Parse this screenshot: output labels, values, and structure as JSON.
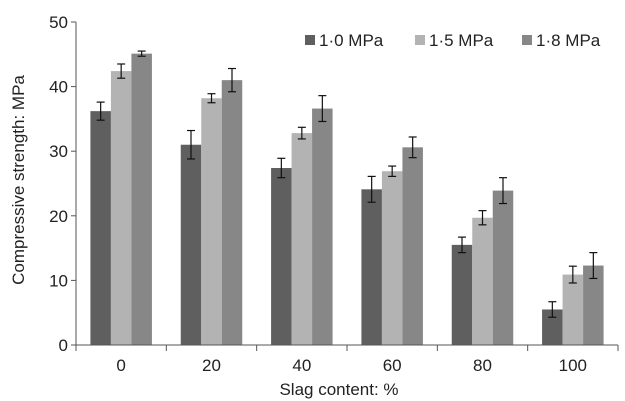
{
  "chart_data": {
    "type": "bar",
    "title": "",
    "xlabel": "Slag content: %",
    "ylabel": "Compressive strength: MPa",
    "categories": [
      "0",
      "20",
      "40",
      "60",
      "80",
      "100"
    ],
    "ylim": [
      0,
      50
    ],
    "yticks": [
      "0",
      "10",
      "20",
      "30",
      "40",
      "50"
    ],
    "grid": false,
    "legend_position": "top-right",
    "series": [
      {
        "name": "1·0 MPa",
        "color": "#5f5f5f",
        "values": [
          36.2,
          31.0,
          27.4,
          24.1,
          15.5,
          5.5
        ],
        "errors": [
          1.4,
          2.2,
          1.5,
          2.0,
          1.2,
          1.2
        ]
      },
      {
        "name": "1·5 MPa",
        "color": "#b3b3b3",
        "values": [
          42.4,
          38.2,
          32.8,
          26.9,
          19.7,
          10.9
        ],
        "errors": [
          1.1,
          0.7,
          0.9,
          0.8,
          1.1,
          1.3
        ]
      },
      {
        "name": "1·8 MPa",
        "color": "#878787",
        "values": [
          45.1,
          41.0,
          36.6,
          30.6,
          23.9,
          12.3
        ],
        "errors": [
          0.4,
          1.8,
          2.0,
          1.6,
          2.0,
          2.0
        ]
      }
    ]
  }
}
